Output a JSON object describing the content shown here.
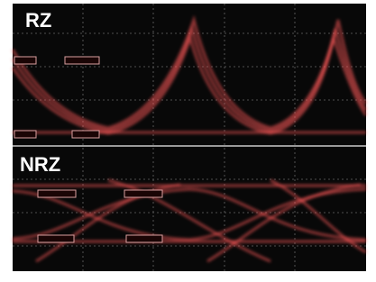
{
  "panels": [
    {
      "label": "RZ"
    },
    {
      "label": "NRZ"
    }
  ]
}
